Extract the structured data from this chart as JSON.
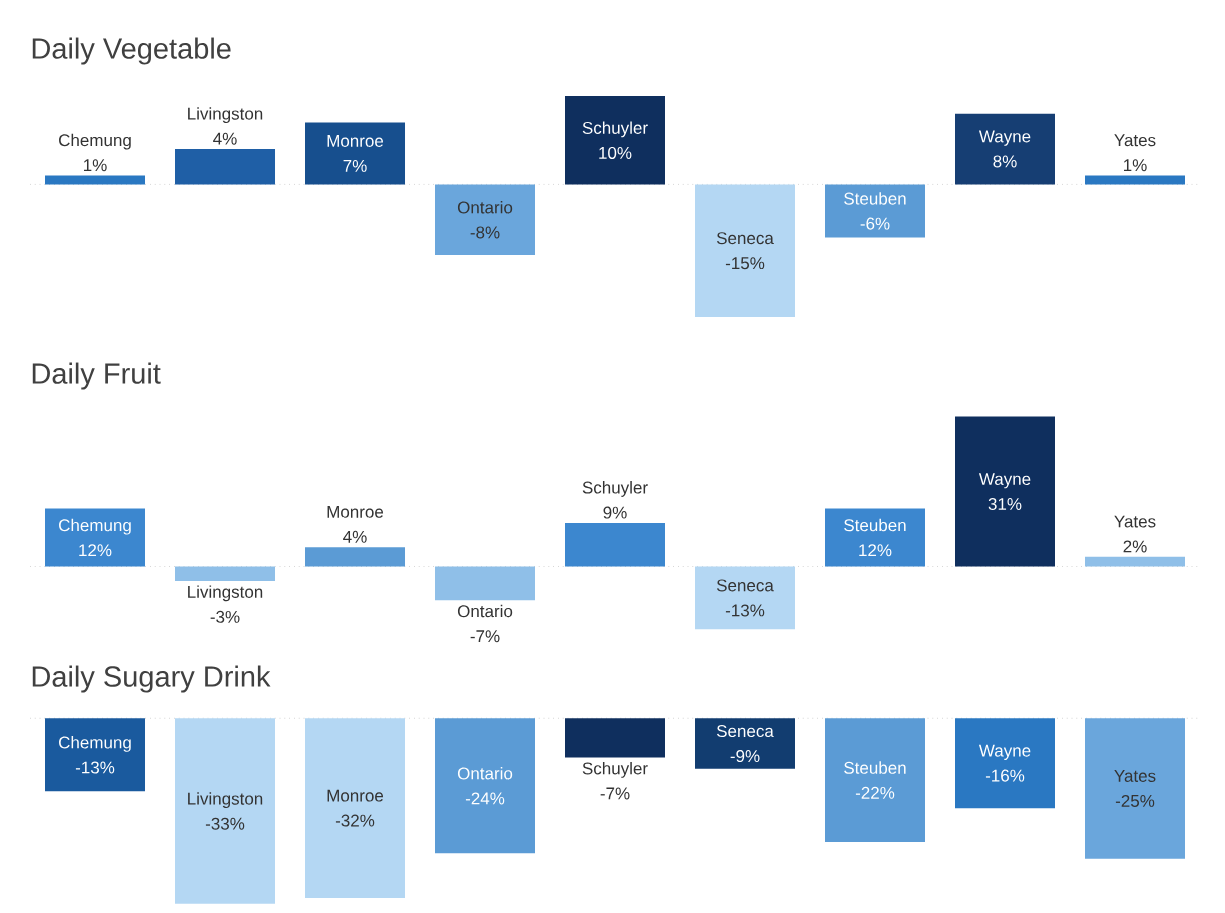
{
  "chart_data": [
    {
      "type": "bar",
      "title": "Daily Vegetable",
      "tick_labels": false,
      "ref_lines": [
        {
          "axis": "y",
          "value": 0,
          "color": "#bfbfbf",
          "line_style": "dotted"
        }
      ],
      "categories": [
        "Chemung",
        "Livingston",
        "Monroe",
        "Ontario",
        "Schuyler",
        "Seneca",
        "Steuben",
        "Wayne",
        "Yates"
      ],
      "values": [
        1,
        4,
        7,
        -8,
        10,
        -15,
        -6,
        8,
        1
      ],
      "value_labels": [
        "1%",
        "4%",
        "7%",
        "-8%",
        "10%",
        "-15%",
        "-6%",
        "8%",
        "1%"
      ],
      "colors": [
        "#2a78c2",
        "#1f5fa6",
        "#174f8e",
        "#6aa6dc",
        "#0f2f5e",
        "#b4d7f3",
        "#5b9bd5",
        "#163e73",
        "#2a78c2"
      ]
    },
    {
      "type": "bar",
      "title": "Daily Fruit",
      "tick_labels": false,
      "ref_lines": [
        {
          "axis": "y",
          "value": 0,
          "color": "#bfbfbf",
          "line_style": "dotted"
        }
      ],
      "categories": [
        "Chemung",
        "Livingston",
        "Monroe",
        "Ontario",
        "Schuyler",
        "Seneca",
        "Steuben",
        "Wayne",
        "Yates"
      ],
      "values": [
        12,
        -3,
        4,
        -7,
        9,
        -13,
        12,
        31,
        2
      ],
      "value_labels": [
        "12%",
        "-3%",
        "4%",
        "-7%",
        "9%",
        "-13%",
        "12%",
        "31%",
        "2%"
      ],
      "colors": [
        "#3c87cf",
        "#8fbfe8",
        "#5b9bd5",
        "#8fbfe8",
        "#3c87cf",
        "#b4d7f3",
        "#3c87cf",
        "#0f2f5e",
        "#8fbfe8"
      ]
    },
    {
      "type": "bar",
      "title": "Daily Sugary Drink",
      "tick_labels": false,
      "ref_lines": [
        {
          "axis": "y",
          "value": 0,
          "color": "#bfbfbf",
          "line_style": "dotted"
        }
      ],
      "categories": [
        "Chemung",
        "Livingston",
        "Monroe",
        "Ontario",
        "Schuyler",
        "Seneca",
        "Steuben",
        "Wayne",
        "Yates"
      ],
      "values": [
        -13,
        -33,
        -32,
        -24,
        -7,
        -9,
        -22,
        -16,
        -25
      ],
      "value_labels": [
        "-13%",
        "-33%",
        "-32%",
        "-24%",
        "-7%",
        "-9%",
        "-22%",
        "-16%",
        "-25%"
      ],
      "colors": [
        "#1a5a9e",
        "#b4d7f3",
        "#b4d7f3",
        "#5b9bd5",
        "#0f2f5e",
        "#123d70",
        "#5b9bd5",
        "#2a78c2",
        "#6aa6dc"
      ]
    }
  ]
}
